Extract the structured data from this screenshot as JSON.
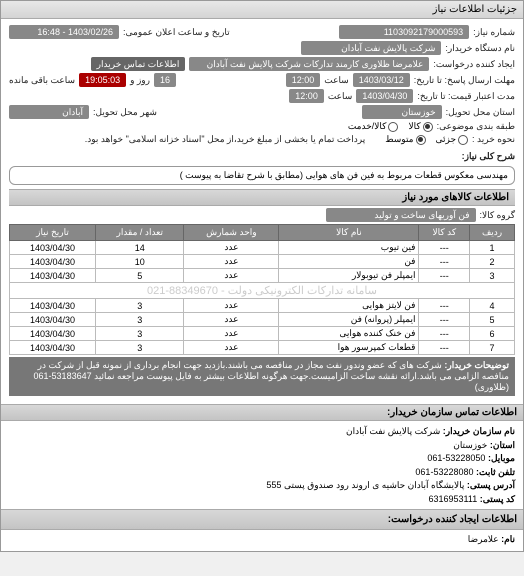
{
  "window": {
    "title": "جزئیات اطلاعات نیاز"
  },
  "header": {
    "req_no_label": "شماره نیاز:",
    "req_no": "1103092179000593",
    "pub_date_label": "تاریخ و ساعت اعلان عمومی:",
    "pub_date": "1403/02/26 - 16:48",
    "device_label": "نام دستگاه خریدار:",
    "device": "شرکت پالایش نفت آبادان",
    "creator_label": "ایجاد کننده درخواست:",
    "creator": "علامرضا ظلاوری کارمند تدارکات شرکت پالایش نفت آبادان",
    "contact_label": "اطلاعات تماس خریدار",
    "deadline_resp_label": "مهلت ارسال پاسخ: تا تاریخ:",
    "deadline_resp_date": "1403/03/12",
    "time_label": "ساعت",
    "deadline_resp_time": "12:00",
    "remain_days": "16",
    "remain_days_label": "روز و",
    "remain_time": "19:05:03",
    "remain_suffix": "ساعت باقی مانده",
    "validity_label": "مدت اعتبار قیمت: تا تاریخ:",
    "validity_date": "1403/04/30",
    "validity_time": "12:00",
    "province_label": "استان محل تحویل:",
    "province": "خوزستان",
    "city_label": "شهر محل تحویل:",
    "city": "آبادان",
    "cat_label": "طبقه بندی موضوعی:",
    "cat_goods": "کالا",
    "cat_service": "کالا/خدمت",
    "type_label": "نحوه خرید :",
    "type_all": "جزئی",
    "type_mid": "متوسط",
    "pay_desc": "پرداخت تمام یا بخشی از مبلغ خرید،از محل \"اسناد خزانه اسلامی\" خواهد بود."
  },
  "desc": {
    "title_label": "شرح کلی نیاز:",
    "title_text": "مهندسی معکوس قطعات مربوط به فین فن های هوایی (مطابق با شرح تقاضا به پیوست )",
    "section_title": "اطلاعات کالاهای مورد نیاز",
    "group_label": "گروه کالا:",
    "group_value": "فن آوریهای ساخت و تولید"
  },
  "table": {
    "columns": [
      "ردیف",
      "کد کالا",
      "نام کالا",
      "واحد شمارش",
      "تعداد / مقدار",
      "تاریخ نیاز"
    ],
    "rows": [
      [
        "1",
        "---",
        "فین تیوب",
        "عدد",
        "14",
        "1403/04/30"
      ],
      [
        "2",
        "---",
        "فن",
        "عدد",
        "10",
        "1403/04/30"
      ],
      [
        "3",
        "---",
        "ایمپلر فن تیوبولار",
        "عدد",
        "5",
        "1403/04/30"
      ],
      [
        "4",
        "---",
        "فن لایتز هوایی",
        "عدد",
        "3",
        "1403/04/30"
      ],
      [
        "5",
        "---",
        "ایمپلر (پروانه) فن",
        "عدد",
        "3",
        "1403/04/30"
      ],
      [
        "6",
        "---",
        "فن خنک کننده هوایی",
        "عدد",
        "3",
        "1403/04/30"
      ],
      [
        "7",
        "---",
        "قطعات کمپرسور هوا",
        "عدد",
        "3",
        "1403/04/30"
      ]
    ],
    "watermark": "سامانه تدارکات الکترونیکی دولت - 88349670-021"
  },
  "notes": {
    "label": "توضیحات خریدار:",
    "text": "شرکت های که عضو وندور نفت مجاز در منافصه می باشند.بازدید جهت انجام برداری از نمونه قبل از شرکت در منافصه الزامی می باشد.ارائه نقشه ساخت الزامیست.جهت هرگونه اطلاعات بیشتر به فایل پیوست مراجعه نمائید 53183647-061 (ظلاوری)"
  },
  "contact": {
    "header": "اطلاعات تماس سازمان خریدار:",
    "org_label": "نام سازمان خریدار:",
    "org": "شرکت پالایش نفت آبادان",
    "prov_label": "استان:",
    "prov": "خوزستان",
    "mobile_label": "موبایل:",
    "mobile": "53228050-061",
    "phone_label": "تلفن ثابت:",
    "phone": "53228080-061",
    "addr_label": "آدرس پستی:",
    "addr": "پالایشگاه آبادان حاشیه ی اروند رود صندوق پستی 555",
    "post_label": "کد پستی:",
    "post": "6316953111",
    "req_creator_header": "اطلاعات ایجاد کننده درخواست:",
    "name_label": "نام:",
    "name": "علامرضا"
  }
}
